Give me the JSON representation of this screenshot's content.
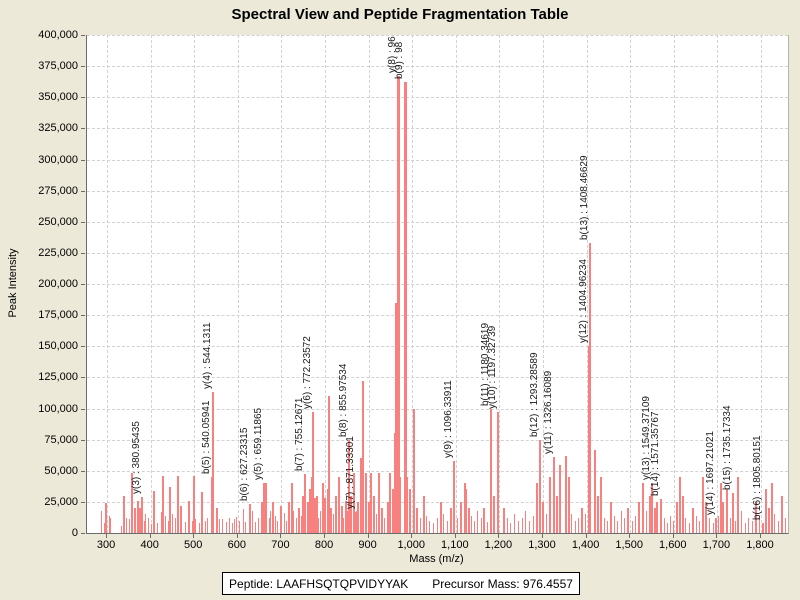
{
  "window": {
    "title": "Spectral View and Peptide Fragmentation Table"
  },
  "footer": {
    "peptide_label": "Peptide: LAAFHSQTQPVIDYYAK",
    "precursor_label": "Precursor Mass: 976.4557"
  },
  "colors": {
    "background": "#ece9d8",
    "plot_background": "#ffffff",
    "peak": "#f8807e",
    "gridline": "#d2d2d2",
    "axis": "#6b6b6b",
    "text": "#000000"
  },
  "chart_data": {
    "type": "bar",
    "title": "Spectral View and Peptide Fragmentation Table",
    "xlabel": "Mass (m/z)",
    "ylabel": "Peak Intensity",
    "xlim": [
      254,
      1862
    ],
    "ylim": [
      0,
      400000
    ],
    "x_ticks": {
      "start": 300,
      "end": 1800,
      "step": 100
    },
    "y_ticks": {
      "start": 0,
      "end": 400000,
      "step": 25000
    },
    "grid": true,
    "legend": "none",
    "labeled_peaks": [
      {
        "ion": "y(3)",
        "label": "y(3) : 380.95435",
        "mass": 380.95,
        "intensity": 29000
      },
      {
        "ion": "b(5)",
        "label": "b(5) : 540.05941",
        "mass": 540.06,
        "intensity": 45000
      },
      {
        "ion": "y(4)",
        "label": "y(4) : 544.1311",
        "mass": 544.13,
        "intensity": 113000
      },
      {
        "ion": "b(6)",
        "label": "b(6) : 627.23315",
        "mass": 627.23,
        "intensity": 23000
      },
      {
        "ion": "y(5)",
        "label": "y(5) : 659.11865",
        "mass": 659.12,
        "intensity": 40000
      },
      {
        "ion": "b(7)",
        "label": "b(7) : 755.12671",
        "mass": 755.13,
        "intensity": 47000
      },
      {
        "ion": "y(6)",
        "label": "y(6) : 772.23572",
        "mass": 772.24,
        "intensity": 97000
      },
      {
        "ion": "b(8)",
        "label": "b(8) : 855.97534",
        "mass": 855.98,
        "intensity": 75000
      },
      {
        "ion": "y(7)",
        "label": "y(7) : 871.33301",
        "mass": 871.33,
        "intensity": 17000
      },
      {
        "ion": "y(8)",
        "label": "y(8) : 96",
        "mass": 968.0,
        "intensity": 367000,
        "label_clipped_at_top": true
      },
      {
        "ion": "b(9)",
        "label": "b(9) : 98",
        "mass": 984.0,
        "intensity": 362000,
        "label_clipped_at_top": true
      },
      {
        "ion": "y(9)",
        "label": "y(9) : 1096.33911",
        "mass": 1096.34,
        "intensity": 58000
      },
      {
        "ion": "b(11)",
        "label": "b(11) : 1180.34619",
        "mass": 1180.35,
        "intensity": 100000
      },
      {
        "ion": "y(10)",
        "label": "y(10) : 1197.32739",
        "mass": 1197.33,
        "intensity": 97000
      },
      {
        "ion": "b(12)",
        "label": "b(12) : 1293.28589",
        "mass": 1293.29,
        "intensity": 75000
      },
      {
        "ion": "y(11)",
        "label": "y(11) : 1326.16089",
        "mass": 1326.16,
        "intensity": 61000
      },
      {
        "ion": "y(12)",
        "label": "y(12) : 1404.96234",
        "mass": 1404.96,
        "intensity": 150000
      },
      {
        "ion": "b(13)",
        "label": "b(13) : 1408.46629",
        "mass": 1408.47,
        "intensity": 233000
      },
      {
        "ion": "y(13)",
        "label": "y(13) : 1549.37109",
        "mass": 1549.37,
        "intensity": 40000
      },
      {
        "ion": "b(14)",
        "label": "b(14) : 1571.35767",
        "mass": 1571.36,
        "intensity": 27000
      },
      {
        "ion": "y(14)",
        "label": "y(14) : 1697.21021",
        "mass": 1697.21,
        "intensity": 12000
      },
      {
        "ion": "b(15)",
        "label": "b(15) : 1735.17334",
        "mass": 1735.17,
        "intensity": 32000
      },
      {
        "ion": "b(16)",
        "label": "b(16) : 1805.80151",
        "mass": 1805.8,
        "intensity": 8000
      }
    ],
    "noise_peaks_mass_intensityK": [
      [
        288,
        18
      ],
      [
        295,
        8
      ],
      [
        298,
        24
      ],
      [
        305,
        14
      ],
      [
        309,
        12
      ],
      [
        332,
        6
      ],
      [
        339,
        30
      ],
      [
        344,
        12
      ],
      [
        351,
        11
      ],
      [
        357,
        48
      ],
      [
        363,
        20
      ],
      [
        371,
        26
      ],
      [
        376,
        20
      ],
      [
        385,
        10
      ],
      [
        389,
        15
      ],
      [
        395,
        12
      ],
      [
        401,
        7
      ],
      [
        408,
        34
      ],
      [
        415,
        8
      ],
      [
        424,
        17
      ],
      [
        428,
        46
      ],
      [
        433,
        14
      ],
      [
        441,
        10
      ],
      [
        444,
        37
      ],
      [
        451,
        15
      ],
      [
        458,
        12
      ],
      [
        462,
        46
      ],
      [
        470,
        22
      ],
      [
        481,
        9
      ],
      [
        488,
        26
      ],
      [
        495,
        10
      ],
      [
        500,
        46
      ],
      [
        504,
        11
      ],
      [
        512,
        8
      ],
      [
        518,
        33
      ],
      [
        525,
        10
      ],
      [
        531,
        12
      ],
      [
        552,
        20
      ],
      [
        558,
        11
      ],
      [
        564,
        11
      ],
      [
        573,
        9
      ],
      [
        582,
        12
      ],
      [
        588,
        8
      ],
      [
        592,
        11
      ],
      [
        598,
        13
      ],
      [
        603,
        10
      ],
      [
        612,
        19
      ],
      [
        618,
        9
      ],
      [
        634,
        18
      ],
      [
        640,
        9
      ],
      [
        648,
        12
      ],
      [
        655,
        25
      ],
      [
        665,
        40
      ],
      [
        672,
        12
      ],
      [
        676,
        18
      ],
      [
        681,
        25
      ],
      [
        686,
        14
      ],
      [
        692,
        10
      ],
      [
        700,
        22
      ],
      [
        707,
        16
      ],
      [
        712,
        10
      ],
      [
        718,
        25
      ],
      [
        724,
        40
      ],
      [
        728,
        18
      ],
      [
        734,
        12
      ],
      [
        740,
        20
      ],
      [
        745,
        14
      ],
      [
        750,
        30
      ],
      [
        760,
        25
      ],
      [
        766,
        35
      ],
      [
        770,
        45
      ],
      [
        776,
        28
      ],
      [
        781,
        30
      ],
      [
        786,
        12
      ],
      [
        790,
        18
      ],
      [
        795,
        40
      ],
      [
        800,
        28
      ],
      [
        806,
        35
      ],
      [
        809,
        110
      ],
      [
        814,
        20
      ],
      [
        820,
        15
      ],
      [
        826,
        30
      ],
      [
        832,
        45
      ],
      [
        838,
        22
      ],
      [
        842,
        12
      ],
      [
        848,
        25
      ],
      [
        852,
        18
      ],
      [
        860,
        30
      ],
      [
        866,
        48
      ],
      [
        872,
        18
      ],
      [
        876,
        25
      ],
      [
        882,
        60
      ],
      [
        887,
        122
      ],
      [
        893,
        48
      ],
      [
        900,
        25
      ],
      [
        906,
        48
      ],
      [
        912,
        30
      ],
      [
        918,
        15
      ],
      [
        924,
        48
      ],
      [
        930,
        20
      ],
      [
        936,
        12
      ],
      [
        944,
        25
      ],
      [
        950,
        48
      ],
      [
        956,
        35
      ],
      [
        960,
        80
      ],
      [
        963,
        185
      ],
      [
        973,
        45
      ],
      [
        988,
        45
      ],
      [
        996,
        35
      ],
      [
        1004,
        100
      ],
      [
        1010,
        20
      ],
      [
        1018,
        12
      ],
      [
        1026,
        30
      ],
      [
        1032,
        14
      ],
      [
        1040,
        10
      ],
      [
        1048,
        8
      ],
      [
        1058,
        12
      ],
      [
        1065,
        25
      ],
      [
        1072,
        15
      ],
      [
        1080,
        10
      ],
      [
        1088,
        20
      ],
      [
        1105,
        12
      ],
      [
        1112,
        25
      ],
      [
        1120,
        40
      ],
      [
        1124,
        35
      ],
      [
        1130,
        20
      ],
      [
        1136,
        14
      ],
      [
        1142,
        10
      ],
      [
        1150,
        18
      ],
      [
        1158,
        12
      ],
      [
        1165,
        20
      ],
      [
        1172,
        9
      ],
      [
        1188,
        30
      ],
      [
        1210,
        20
      ],
      [
        1218,
        12
      ],
      [
        1226,
        8
      ],
      [
        1235,
        15
      ],
      [
        1244,
        10
      ],
      [
        1252,
        12
      ],
      [
        1260,
        18
      ],
      [
        1268,
        10
      ],
      [
        1278,
        14
      ],
      [
        1286,
        40
      ],
      [
        1300,
        25
      ],
      [
        1308,
        15
      ],
      [
        1316,
        45
      ],
      [
        1332,
        30
      ],
      [
        1340,
        55
      ],
      [
        1352,
        62
      ],
      [
        1360,
        45
      ],
      [
        1366,
        15
      ],
      [
        1374,
        10
      ],
      [
        1382,
        12
      ],
      [
        1390,
        20
      ],
      [
        1398,
        15
      ],
      [
        1419,
        67
      ],
      [
        1426,
        30
      ],
      [
        1433,
        45
      ],
      [
        1440,
        12
      ],
      [
        1448,
        10
      ],
      [
        1456,
        25
      ],
      [
        1464,
        14
      ],
      [
        1472,
        10
      ],
      [
        1480,
        18
      ],
      [
        1488,
        12
      ],
      [
        1496,
        20
      ],
      [
        1505,
        10
      ],
      [
        1512,
        14
      ],
      [
        1520,
        25
      ],
      [
        1530,
        40
      ],
      [
        1538,
        18
      ],
      [
        1545,
        30
      ],
      [
        1556,
        20
      ],
      [
        1562,
        25
      ],
      [
        1578,
        12
      ],
      [
        1585,
        8
      ],
      [
        1592,
        14
      ],
      [
        1600,
        10
      ],
      [
        1608,
        25
      ],
      [
        1614,
        45
      ],
      [
        1620,
        30
      ],
      [
        1628,
        12
      ],
      [
        1636,
        8
      ],
      [
        1645,
        20
      ],
      [
        1652,
        14
      ],
      [
        1660,
        10
      ],
      [
        1668,
        45
      ],
      [
        1675,
        25
      ],
      [
        1682,
        12
      ],
      [
        1690,
        8
      ],
      [
        1702,
        14
      ],
      [
        1708,
        40
      ],
      [
        1714,
        25
      ],
      [
        1722,
        35
      ],
      [
        1730,
        12
      ],
      [
        1742,
        10
      ],
      [
        1748,
        45
      ],
      [
        1756,
        18
      ],
      [
        1764,
        8
      ],
      [
        1772,
        12
      ],
      [
        1780,
        10
      ],
      [
        1788,
        25
      ],
      [
        1796,
        14
      ],
      [
        1812,
        35
      ],
      [
        1818,
        20
      ],
      [
        1825,
        40
      ],
      [
        1832,
        15
      ],
      [
        1840,
        10
      ],
      [
        1848,
        30
      ],
      [
        1856,
        12
      ],
      [
        1865,
        8
      ],
      [
        1872,
        14
      ]
    ]
  }
}
